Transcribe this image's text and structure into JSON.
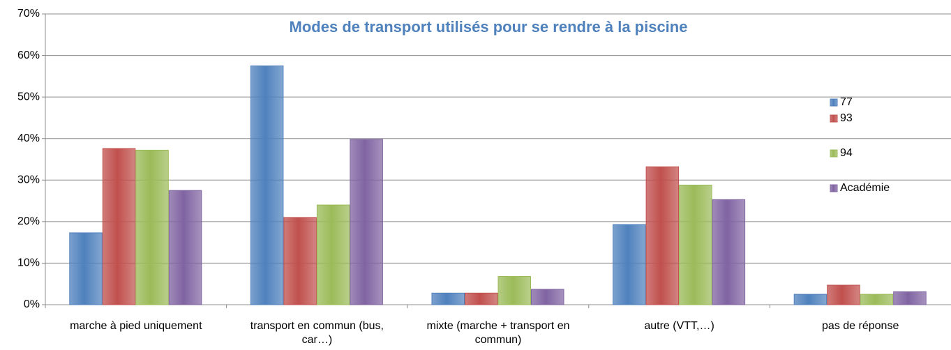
{
  "chart_data": {
    "type": "bar",
    "title": "Modes de transport utilisés pour se rendre à la piscine",
    "categories": [
      "marche à pied uniquement",
      "transport en commun (bus, car…)",
      "mixte (marche + transport en commun)",
      "autre (VTT,…)",
      "pas de réponse"
    ],
    "series": [
      {
        "name": "77",
        "color": "#4f81bd",
        "values": [
          17.3,
          57.5,
          2.8,
          19.3,
          2.5
        ]
      },
      {
        "name": "93",
        "color": "#c0504d",
        "values": [
          37.6,
          21.0,
          2.8,
          33.2,
          4.7
        ]
      },
      {
        "name": "94",
        "color": "#9bbb59",
        "values": [
          37.2,
          24.0,
          6.8,
          28.8,
          2.5
        ]
      },
      {
        "name": "Académie",
        "color": "#8064a2",
        "values": [
          27.5,
          39.8,
          3.7,
          25.3,
          3.1
        ]
      }
    ],
    "ylim": [
      0,
      70
    ],
    "yticks": [
      {
        "value": 0,
        "label": "0%"
      },
      {
        "value": 10,
        "label": "10%"
      },
      {
        "value": 20,
        "label": "20%"
      },
      {
        "value": 30,
        "label": "30%"
      },
      {
        "value": 40,
        "label": "40%"
      },
      {
        "value": 50,
        "label": "50%"
      },
      {
        "value": 60,
        "label": "60%"
      },
      {
        "value": 70,
        "label": "70%"
      }
    ],
    "grid": true,
    "legend": "right"
  }
}
